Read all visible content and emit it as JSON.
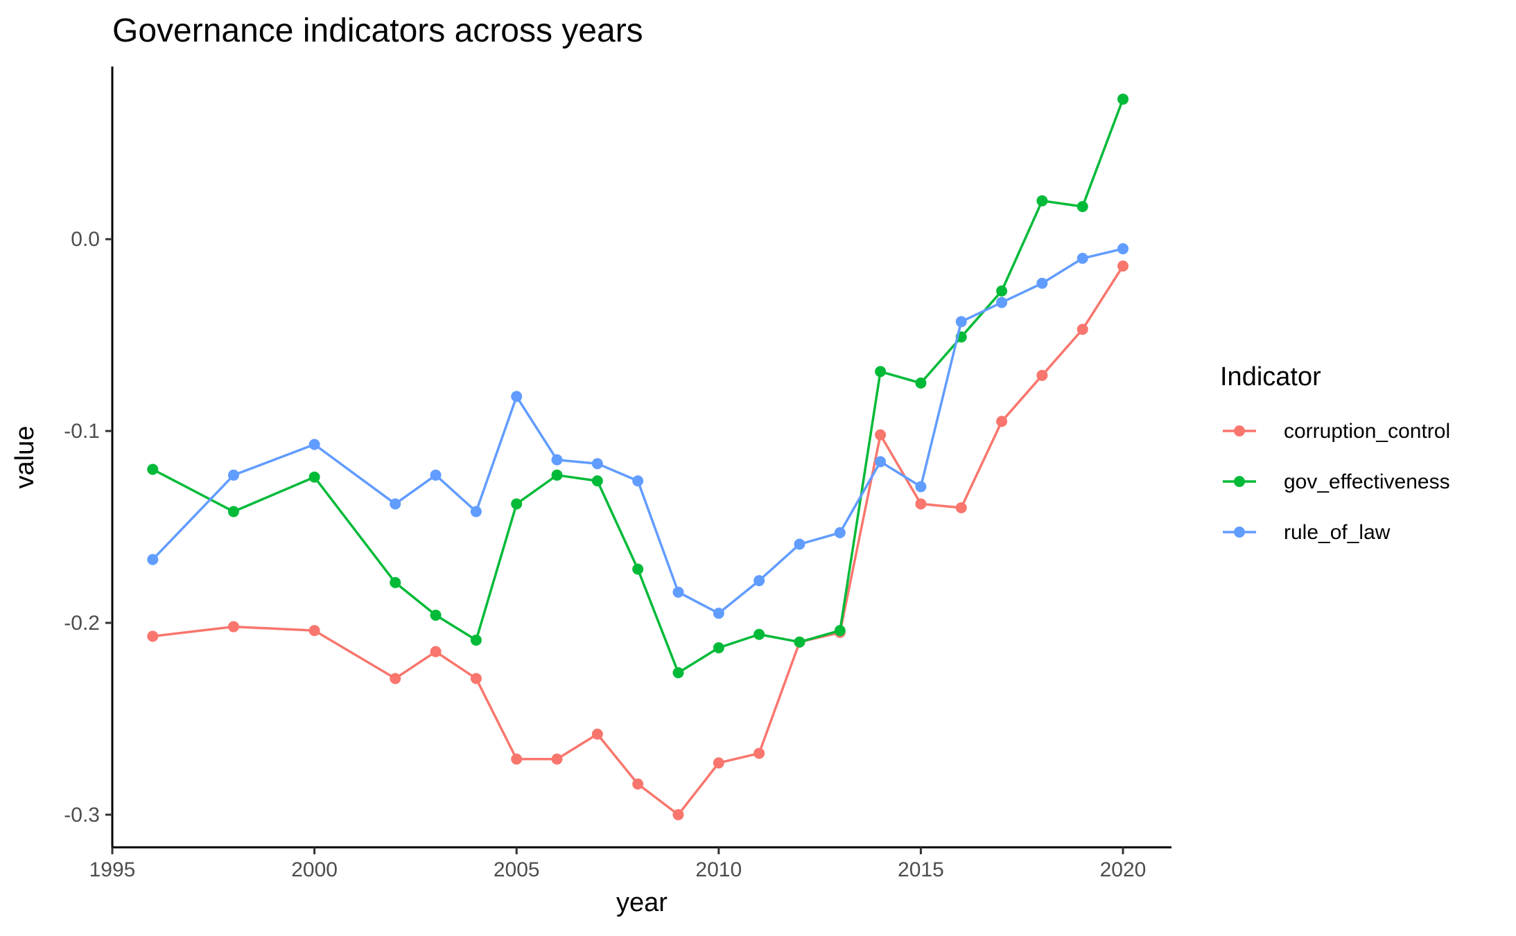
{
  "chart_data": {
    "type": "line",
    "title": "Governance indicators across years",
    "xlabel": "year",
    "ylabel": "value",
    "xlim": [
      1995,
      2021.2
    ],
    "ylim": [
      -0.317,
      0.09
    ],
    "x_ticks": [
      1995,
      2000,
      2005,
      2010,
      2015,
      2020
    ],
    "x_tick_labels": [
      "1995",
      "2000",
      "2005",
      "2010",
      "2015",
      "2020"
    ],
    "y_ticks": [
      0.0,
      -0.1,
      -0.2,
      -0.3
    ],
    "y_tick_labels": [
      "0.0",
      "-0.1",
      "-0.2",
      "-0.3"
    ],
    "grid": false,
    "legend": {
      "title": "Indicator",
      "position": "right"
    },
    "x": [
      1996,
      1998,
      2000,
      2002,
      2003,
      2004,
      2005,
      2006,
      2007,
      2008,
      2009,
      2010,
      2011,
      2012,
      2013,
      2014,
      2015,
      2016,
      2017,
      2018,
      2019,
      2020
    ],
    "series": [
      {
        "name": "corruption_control",
        "color": "#F8766D",
        "values": [
          -0.207,
          -0.202,
          -0.204,
          -0.229,
          -0.215,
          -0.229,
          -0.271,
          -0.271,
          -0.258,
          -0.284,
          -0.3,
          -0.273,
          -0.268,
          -0.21,
          -0.205,
          -0.102,
          -0.138,
          -0.14,
          -0.095,
          -0.071,
          -0.047,
          -0.014
        ]
      },
      {
        "name": "gov_effectiveness",
        "color": "#00BA38",
        "values": [
          -0.12,
          -0.142,
          -0.124,
          -0.179,
          -0.196,
          -0.209,
          -0.138,
          -0.123,
          -0.126,
          -0.172,
          -0.226,
          -0.213,
          -0.206,
          -0.21,
          -0.204,
          -0.069,
          -0.075,
          -0.051,
          -0.027,
          0.02,
          0.017,
          0.073
        ]
      },
      {
        "name": "rule_of_law",
        "color": "#619CFF",
        "values": [
          -0.167,
          -0.123,
          -0.107,
          -0.138,
          -0.123,
          -0.142,
          -0.082,
          -0.115,
          -0.117,
          -0.126,
          -0.184,
          -0.195,
          -0.178,
          -0.159,
          -0.153,
          -0.116,
          -0.129,
          -0.043,
          -0.033,
          -0.023,
          -0.01,
          -0.005
        ]
      }
    ]
  }
}
